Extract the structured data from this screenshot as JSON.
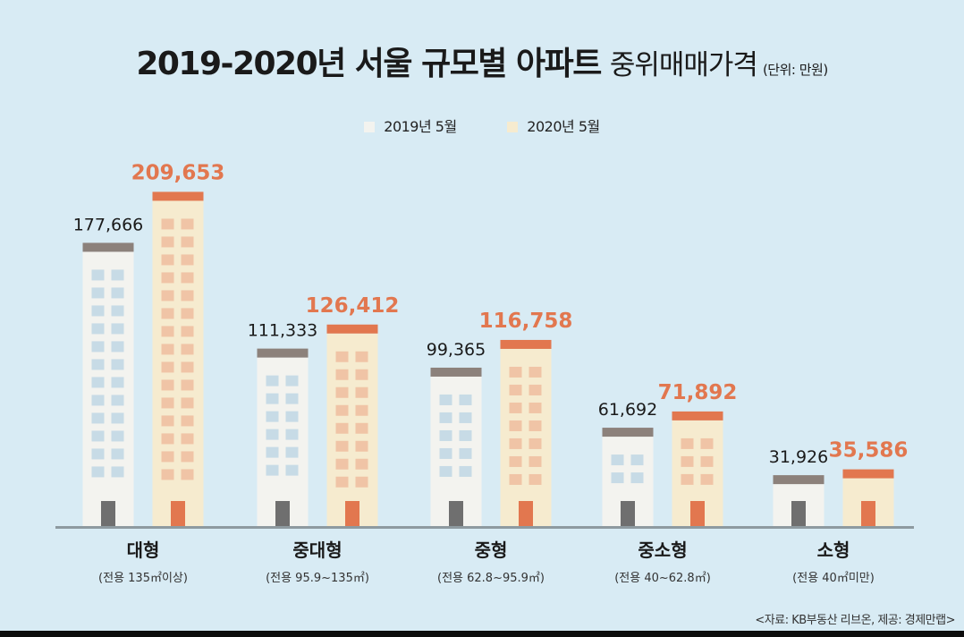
{
  "title_bold": "2019-2020년 서울 규모별 아파트",
  "title_light": "중위매매가격",
  "unit_label": "(단위: 만원)",
  "legend": [
    {
      "label": "2019년 5월",
      "color": "#f3f3ef"
    },
    {
      "label": "2020년 5월",
      "color": "#f6ebcf"
    }
  ],
  "source": "<자료: KB부동산 리브온, 제공: 경제만랩>",
  "colors": {
    "background": "#d8ebf4",
    "roof2019": "#8c817b",
    "roof2020": "#e2774f",
    "body2019": "#f3f3ef",
    "body2020": "#f6ebcf",
    "window2019": "#c7dbe6",
    "window2020": "#f0c4a6",
    "door2019": "#6f6f6f",
    "door2020": "#e2774f",
    "label2019": "#1a1a1a",
    "label2020": "#e2774f",
    "baseline": "#8e9aa0"
  },
  "chart_data": {
    "type": "bar",
    "categories": [
      "대형",
      "중대형",
      "중형",
      "중소형",
      "소형"
    ],
    "category_sublabels": [
      "(전용 135㎡이상)",
      "(전용 95.9~135㎡)",
      "(전용 62.8~95.9㎡)",
      "(전용 40~62.8㎡)",
      "(전용 40㎡미만)"
    ],
    "series": [
      {
        "name": "2019년 5월",
        "values": [
          177666,
          111333,
          99365,
          61692,
          31926
        ],
        "labels": [
          "177,666",
          "111,333",
          "99,365",
          "61,692",
          "31,926"
        ]
      },
      {
        "name": "2020년 5월",
        "values": [
          209653,
          126412,
          116758,
          71892,
          35586
        ],
        "labels": [
          "209,653",
          "126,412",
          "116,758",
          "71,892",
          "35,586"
        ]
      }
    ],
    "title": "2019-2020년 서울 규모별 아파트 중위매매가격",
    "ylabel": "",
    "ylim": [
      0,
      220000
    ]
  }
}
